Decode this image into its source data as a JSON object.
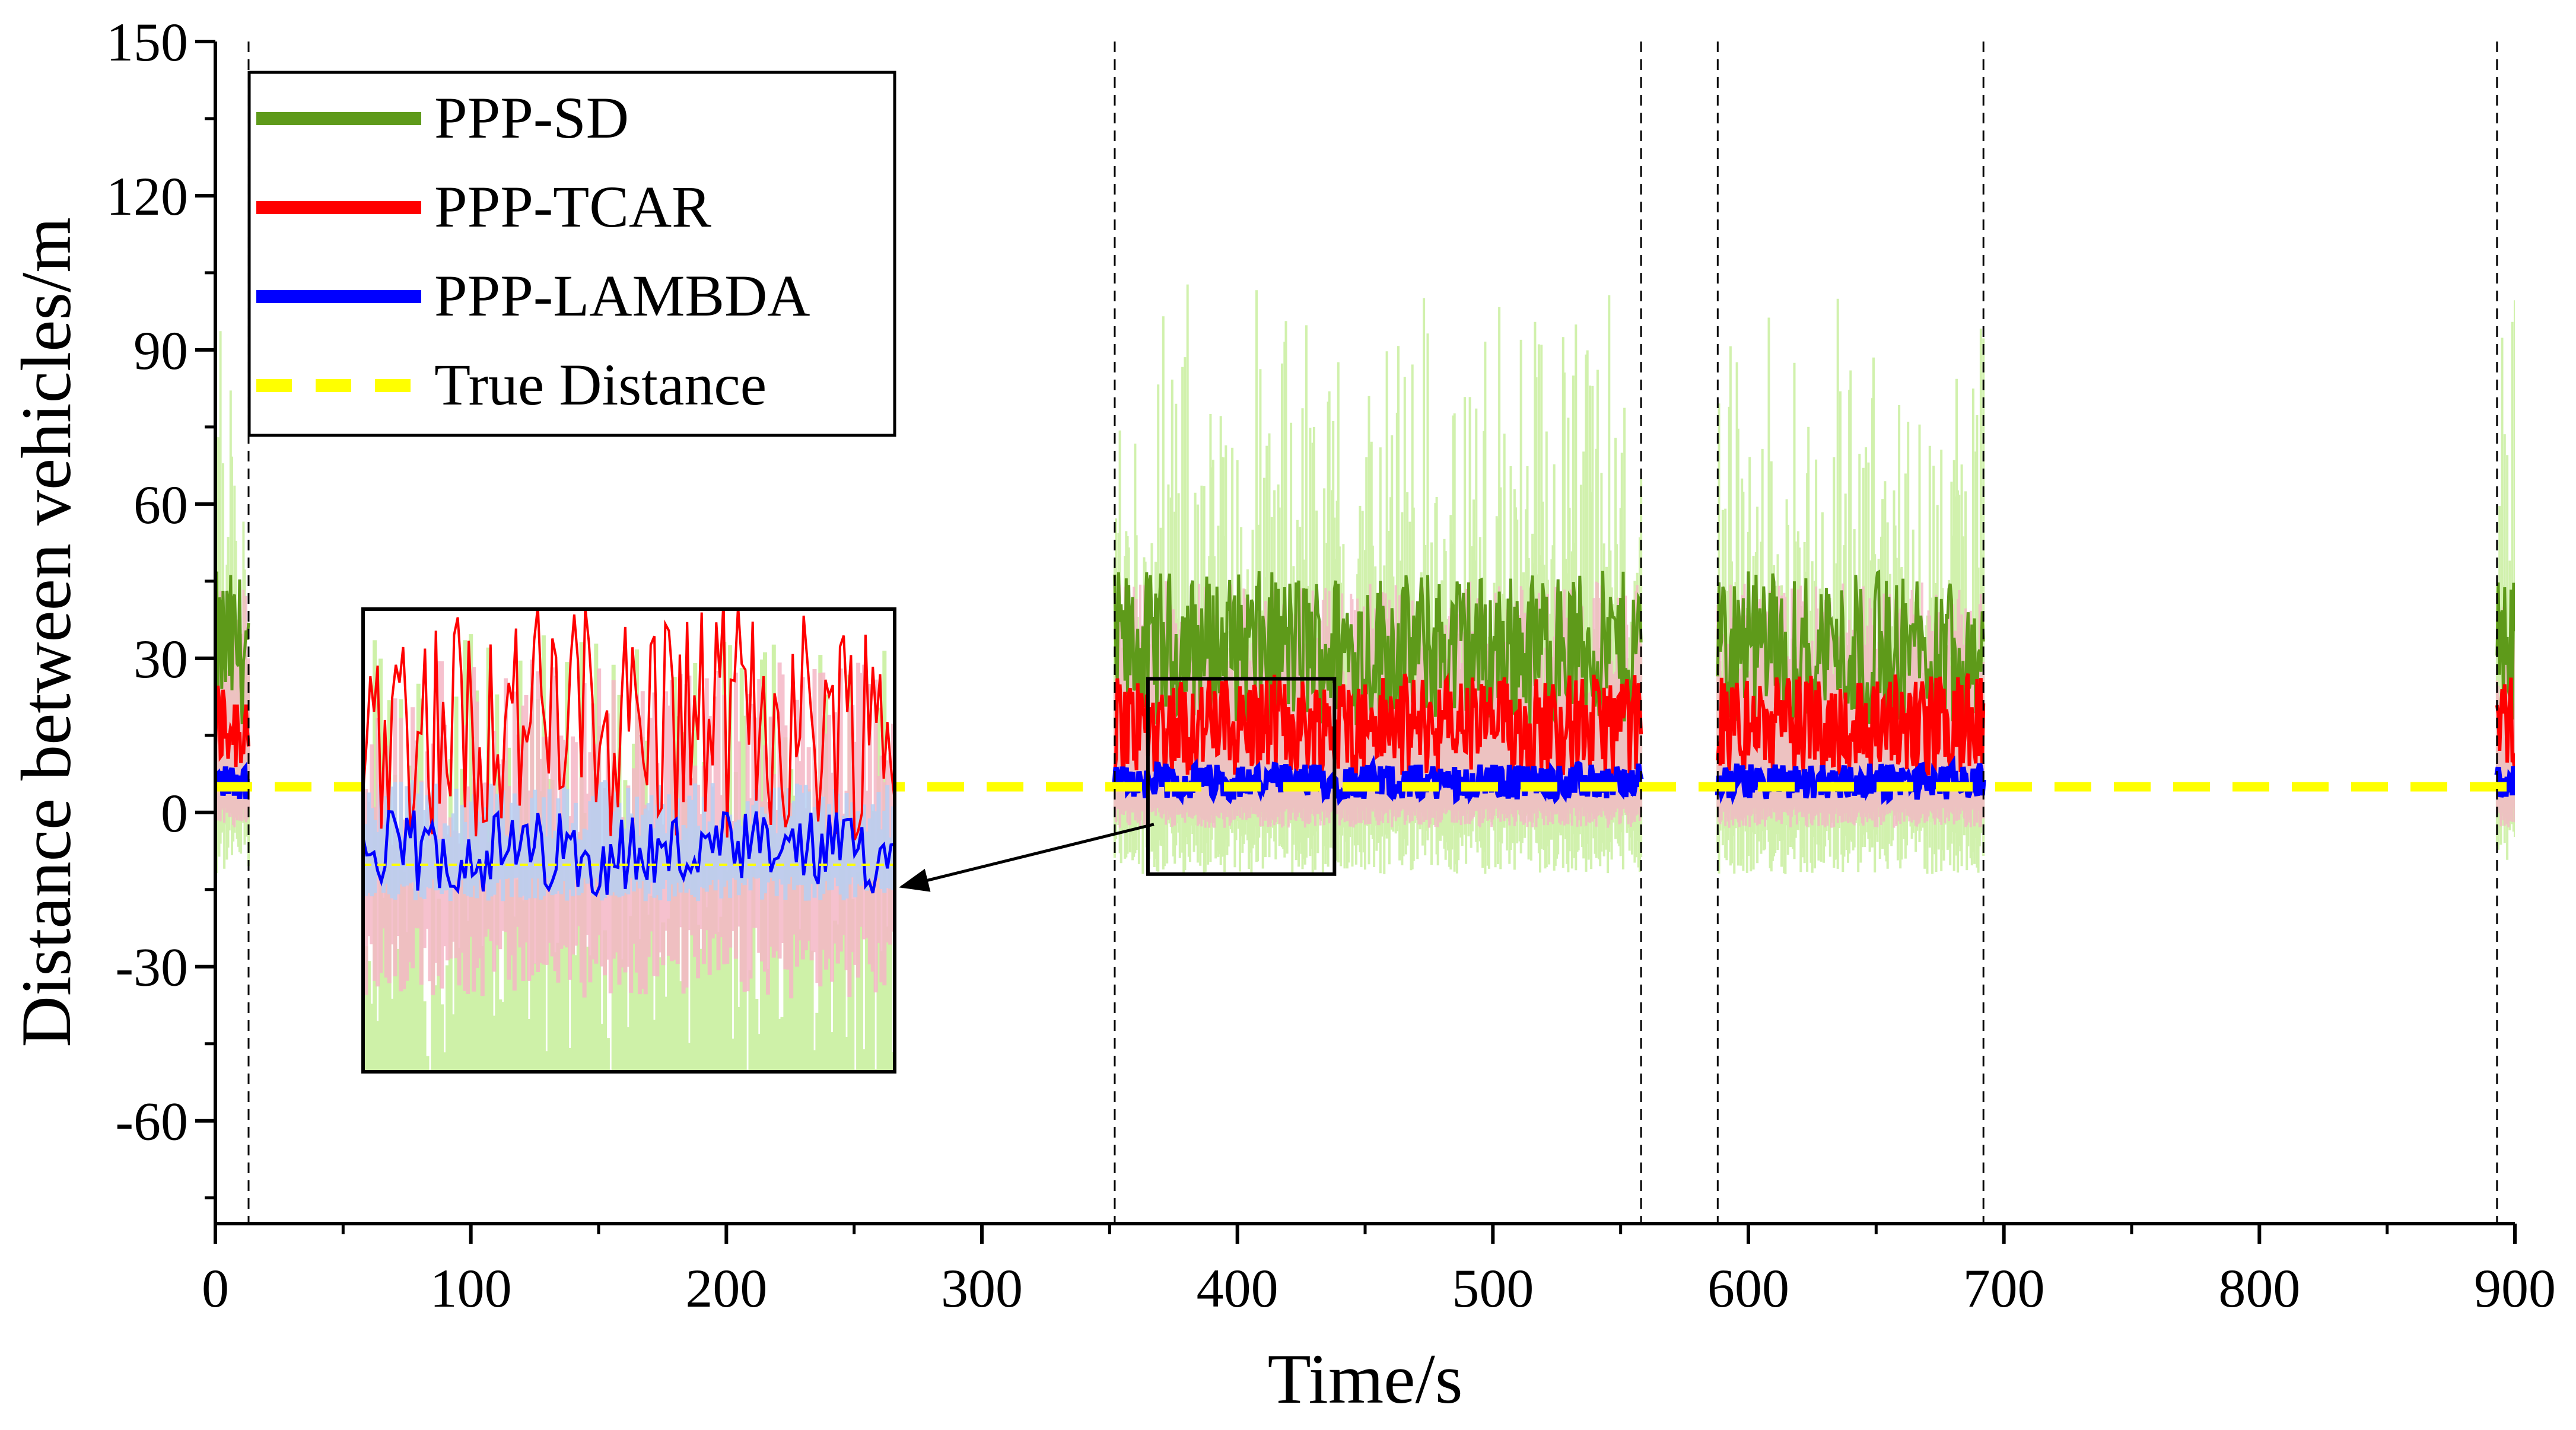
{
  "chart_data": {
    "type": "line",
    "title": "",
    "xlabel": "Time/s",
    "ylabel": "Distance between vehicles/m",
    "xlim": [
      0,
      900
    ],
    "ylim": [
      -80,
      150
    ],
    "xticks": [
      0,
      100,
      200,
      300,
      400,
      500,
      600,
      700,
      800,
      900
    ],
    "yticks": [
      -60,
      -30,
      0,
      30,
      60,
      90,
      120,
      150
    ],
    "xtick_labels": [
      "0",
      "100",
      "200",
      "300",
      "400",
      "500",
      "600",
      "700",
      "800",
      "900"
    ],
    "ytick_labels": [
      "-60",
      "-30",
      "0",
      "30",
      "60",
      "90",
      "120",
      "150"
    ],
    "grid": false,
    "legend_position": "top-left",
    "observation_segments": [
      [
        0,
        13
      ],
      [
        352,
        558
      ],
      [
        588,
        692
      ],
      [
        893,
        900
      ]
    ],
    "gap_markers_x": [
      13,
      352,
      558,
      588,
      692,
      893
    ],
    "series": [
      {
        "name": "PPP-SD",
        "color": "#5e9a1a",
        "band_color": "#c9ef9f",
        "mean": 32,
        "amplitude": 15,
        "band_low": -12,
        "band_high": 112
      },
      {
        "name": "PPP-TCAR",
        "color": "#ff0000",
        "band_color": "#f4b6c6",
        "mean": 17,
        "amplitude": 10,
        "band_low": -3,
        "band_high": 45
      },
      {
        "name": "PPP-LAMBDA",
        "color": "#0000ff",
        "band_color": "#b6cff2",
        "mean": 6,
        "amplitude": 3.5,
        "band_low": 1,
        "band_high": 11
      },
      {
        "name": "True Distance",
        "color": "#ffff00",
        "value": 5,
        "style": "dashed"
      }
    ],
    "inset": {
      "zoom_x_range": [
        365,
        438
      ],
      "zoom_y_range": [
        -12,
        26
      ],
      "arrow": "from zoom box to inset"
    }
  },
  "legend": {
    "items": [
      {
        "label": "PPP-SD",
        "color": "#5e9a1a"
      },
      {
        "label": "PPP-TCAR",
        "color": "#ff0000"
      },
      {
        "label": "PPP-LAMBDA",
        "color": "#0000ff"
      },
      {
        "label": "True Distance",
        "color": "#ffff00"
      }
    ]
  }
}
